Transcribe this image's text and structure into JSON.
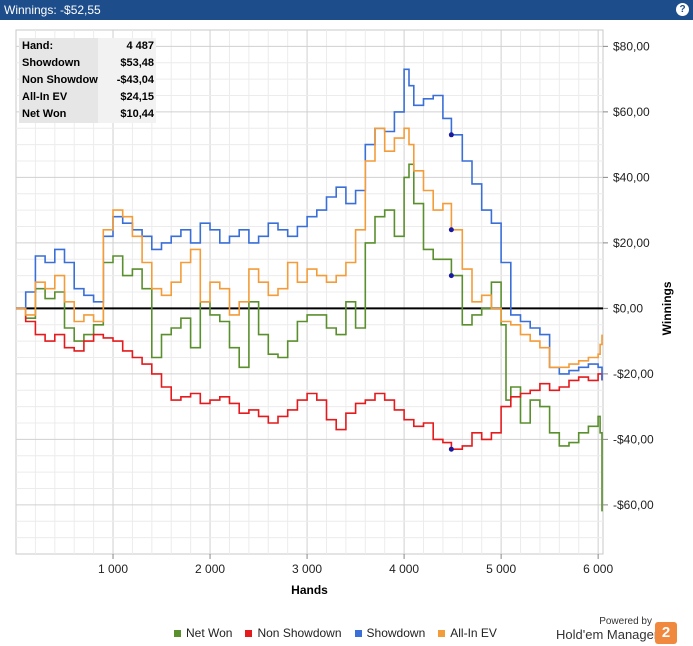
{
  "window": {
    "title": "Winnings: -$52,55",
    "help_label": "?"
  },
  "stats": [
    {
      "label": "Hand:",
      "value": "4 487"
    },
    {
      "label": "Showdown",
      "value": "$53,48"
    },
    {
      "label": "Non Showdown",
      "value": "-$43,04"
    },
    {
      "label": "All-In EV",
      "value": "$24,15"
    },
    {
      "label": "Net Won",
      "value": "$10,44"
    }
  ],
  "branding": {
    "powered": "Powered by",
    "product": "Hold'em Manager",
    "logo": "2"
  },
  "chart_data": {
    "type": "line",
    "xlabel": "Hands",
    "ylabel": "Winnings",
    "xlim": [
      0,
      6050
    ],
    "ylim": [
      -75,
      85
    ],
    "x_ticks": [
      1000,
      2000,
      3000,
      4000,
      5000,
      6000
    ],
    "x_tick_labels": [
      "1 000",
      "2 000",
      "3 000",
      "4 000",
      "5 000",
      "6 000"
    ],
    "y_ticks": [
      -60,
      -40,
      -20,
      0,
      20,
      40,
      60,
      80
    ],
    "y_tick_labels": [
      "-$60,00",
      "-$40,00",
      "-$20,00",
      "$0,00",
      "$20,00",
      "$40,00",
      "$60,00",
      "$80,00"
    ],
    "grid": true,
    "legend_position": "bottom",
    "series": [
      {
        "name": "Net Won",
        "color": "#5a8f2e",
        "x": [
          0,
          100,
          200,
          300,
          400,
          500,
          600,
          700,
          800,
          900,
          1000,
          1100,
          1200,
          1300,
          1400,
          1500,
          1600,
          1700,
          1800,
          1900,
          2000,
          2100,
          2200,
          2300,
          2400,
          2500,
          2600,
          2700,
          2800,
          2900,
          3000,
          3100,
          3200,
          3300,
          3400,
          3500,
          3600,
          3700,
          3800,
          3900,
          4000,
          4050,
          4100,
          4200,
          4300,
          4400,
          4487,
          4600,
          4700,
          4800,
          4900,
          5000,
          5050,
          5100,
          5200,
          5300,
          5400,
          5500,
          5600,
          5700,
          5800,
          5900,
          6000,
          6020,
          6040
        ],
        "y": [
          0,
          -3,
          6,
          3,
          5,
          -6,
          -10,
          -8,
          -5,
          14,
          16,
          10,
          12,
          6,
          -15,
          -8,
          -6,
          -3,
          -12,
          2,
          -2,
          -4,
          -12,
          -18,
          2,
          -8,
          -14,
          -15,
          -10,
          -4,
          -2,
          -2,
          -6,
          -8,
          2,
          -6,
          20,
          28,
          30,
          22,
          40,
          44,
          32,
          18,
          15,
          15,
          10,
          -5,
          -2,
          0,
          8,
          -5,
          -28,
          -24,
          -35,
          -28,
          -30,
          -38,
          -42,
          -41,
          -38,
          -36,
          -33,
          -38,
          -62
        ]
      },
      {
        "name": "Non Showdown",
        "color": "#e41a1c",
        "x": [
          0,
          100,
          200,
          300,
          400,
          500,
          600,
          700,
          800,
          900,
          1000,
          1100,
          1200,
          1300,
          1400,
          1500,
          1600,
          1700,
          1800,
          1900,
          2000,
          2100,
          2200,
          2300,
          2400,
          2500,
          2600,
          2700,
          2800,
          2900,
          3000,
          3100,
          3200,
          3300,
          3400,
          3500,
          3600,
          3700,
          3800,
          3900,
          4000,
          4100,
          4200,
          4300,
          4400,
          4487,
          4600,
          4700,
          4800,
          4900,
          5000,
          5100,
          5200,
          5300,
          5400,
          5500,
          5600,
          5700,
          5800,
          5900,
          6000,
          6040
        ],
        "y": [
          0,
          -4,
          -8,
          -10,
          -8,
          -12,
          -13,
          -10,
          -8,
          -9,
          -10,
          -13,
          -15,
          -17,
          -20,
          -24,
          -28,
          -27,
          -26,
          -29,
          -28,
          -27,
          -29,
          -32,
          -31,
          -33,
          -35,
          -33,
          -31,
          -28,
          -26,
          -28,
          -34,
          -37,
          -32,
          -29,
          -28,
          -26,
          -28,
          -31,
          -34,
          -36,
          -35,
          -40,
          -41,
          -43,
          -42,
          -38,
          -40,
          -38,
          -30,
          -27,
          -26,
          -25,
          -23,
          -25,
          -24,
          -22,
          -21,
          -22,
          -20,
          -22
        ]
      },
      {
        "name": "Showdown",
        "color": "#3a6fd8",
        "x": [
          0,
          100,
          200,
          300,
          400,
          500,
          600,
          700,
          800,
          900,
          1000,
          1100,
          1200,
          1300,
          1400,
          1500,
          1600,
          1700,
          1800,
          1900,
          2000,
          2100,
          2200,
          2300,
          2400,
          2500,
          2600,
          2700,
          2800,
          2900,
          3000,
          3100,
          3200,
          3300,
          3400,
          3500,
          3600,
          3700,
          3800,
          3900,
          4000,
          4050,
          4100,
          4200,
          4300,
          4400,
          4487,
          4600,
          4700,
          4800,
          4900,
          5000,
          5100,
          5200,
          5300,
          5400,
          5500,
          5600,
          5700,
          5800,
          5900,
          6000,
          6040
        ],
        "y": [
          0,
          5,
          16,
          14,
          18,
          14,
          6,
          4,
          2,
          22,
          28,
          26,
          24,
          22,
          18,
          20,
          22,
          24,
          20,
          26,
          24,
          20,
          22,
          24,
          20,
          22,
          26,
          24,
          22,
          25,
          28,
          30,
          34,
          37,
          32,
          36,
          50,
          55,
          54,
          60,
          73,
          68,
          62,
          64,
          65,
          58,
          53,
          45,
          38,
          30,
          26,
          14,
          -2,
          -4,
          -6,
          -8,
          -18,
          -20,
          -19,
          -18,
          -17,
          -18,
          -22
        ]
      },
      {
        "name": "All-In EV",
        "color": "#f39c3a",
        "x": [
          0,
          100,
          200,
          300,
          400,
          500,
          600,
          700,
          800,
          900,
          1000,
          1100,
          1200,
          1300,
          1400,
          1500,
          1600,
          1700,
          1800,
          1900,
          2000,
          2100,
          2200,
          2300,
          2400,
          2500,
          2600,
          2700,
          2800,
          2900,
          3000,
          3100,
          3200,
          3300,
          3400,
          3500,
          3600,
          3700,
          3800,
          3900,
          4000,
          4050,
          4100,
          4200,
          4300,
          4400,
          4487,
          4600,
          4700,
          4800,
          4900,
          5000,
          5100,
          5200,
          5300,
          5400,
          5500,
          5600,
          5700,
          5800,
          5900,
          6000,
          6020,
          6040
        ],
        "y": [
          0,
          -2,
          8,
          6,
          10,
          2,
          -4,
          -2,
          -4,
          24,
          30,
          28,
          22,
          14,
          6,
          4,
          8,
          14,
          18,
          2,
          8,
          6,
          -2,
          2,
          12,
          8,
          4,
          6,
          14,
          8,
          12,
          10,
          8,
          10,
          14,
          24,
          45,
          55,
          48,
          52,
          55,
          50,
          42,
          36,
          30,
          32,
          24,
          12,
          2,
          4,
          0,
          -4,
          -5,
          -8,
          -10,
          -12,
          -18,
          -18,
          -17,
          -16,
          -15,
          -14,
          -11,
          -8
        ]
      }
    ],
    "markers": [
      {
        "series": "Showdown",
        "x": 4487,
        "y": 53
      },
      {
        "series": "All-In EV",
        "x": 4487,
        "y": 24
      },
      {
        "series": "Net Won",
        "x": 4487,
        "y": 10
      },
      {
        "series": "Non Showdown",
        "x": 4487,
        "y": -43
      }
    ]
  }
}
